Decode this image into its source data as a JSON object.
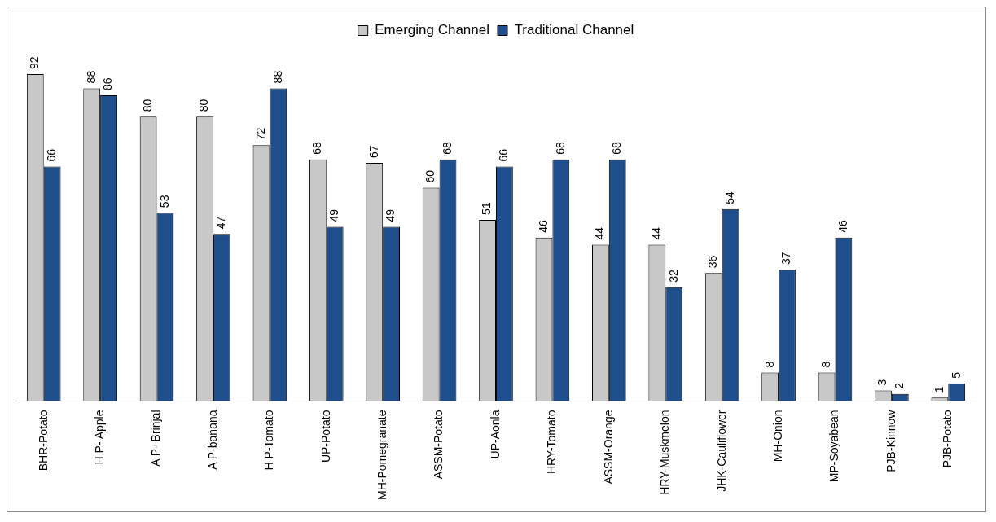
{
  "chart_data": {
    "type": "bar",
    "categories": [
      "BHR-Potato",
      "H P- Apple",
      "A P- Brinjal",
      "A P-banana",
      "H P-Tomato",
      "UP-Potato",
      "MH-Pomegranate",
      "ASSM-Potato",
      "UP-Aonla",
      "HRY-Tomato",
      "ASSM-Orange",
      "HRY-Muskmelon",
      "JHK-Cauliflower",
      "MH-Onion",
      "MP-Soyabean",
      "PJB-Kinnow",
      "PJB-Potato"
    ],
    "series": [
      {
        "name": "Emerging Channel",
        "color": "#c8c8c8",
        "values": [
          92,
          88,
          80,
          80,
          72,
          68,
          67,
          60,
          51,
          46,
          44,
          44,
          36,
          8,
          8,
          3,
          1
        ]
      },
      {
        "name": "Traditional Channel",
        "color": "#1f4e8c",
        "values": [
          66,
          86,
          53,
          47,
          88,
          49,
          49,
          68,
          66,
          68,
          68,
          32,
          54,
          37,
          46,
          2,
          5
        ]
      }
    ],
    "data_labels": true,
    "legend": "top",
    "grid": false
  }
}
